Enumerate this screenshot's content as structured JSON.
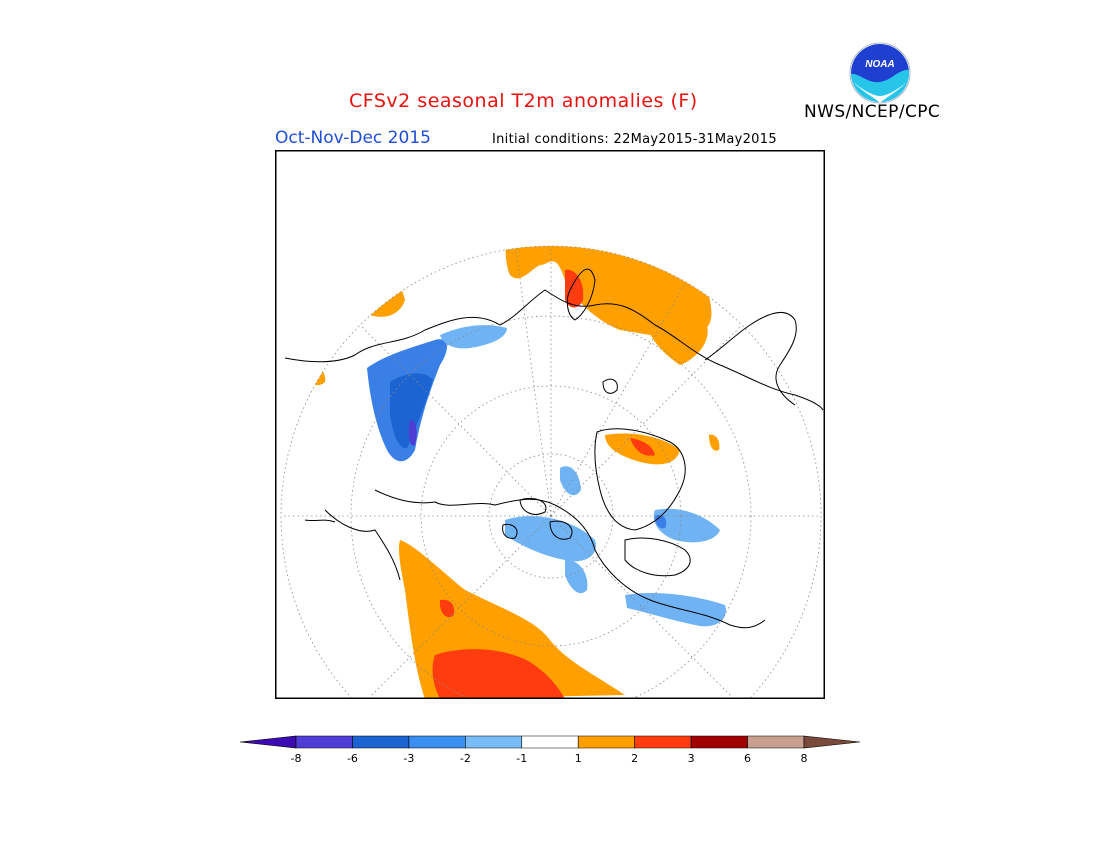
{
  "title": "CFSv2 seasonal T2m anomalies (F)",
  "period": "Oct-Nov-Dec 2015",
  "initial_conditions": "Initial conditions: 22May2015-31May2015",
  "agency": "NWS/NCEP/CPC",
  "logo": {
    "text": "NOAA",
    "icon": "noaa-logo-icon",
    "colors": {
      "sky": "#1f3fd1",
      "wave": "#27c6e8"
    }
  },
  "map": {
    "projection": "north polar stereographic",
    "anomaly_regions": [
      {
        "region": "Siberia / East Asia",
        "category": "1 to 2",
        "color": "#ffa000"
      },
      {
        "region": "Central Siberia coast",
        "category": "2 to 3",
        "color": "#ff3c10"
      },
      {
        "region": "Northwest Russia / Scandinavia",
        "category": "1 to 2",
        "color": "#ffa000"
      },
      {
        "region": "Alaska",
        "category": "1 to 2",
        "color": "#ffa000"
      },
      {
        "region": "Northern Greenland coast",
        "category": "1 to 2",
        "color": "#ffa000"
      },
      {
        "region": "Western North America / Pacific Northwest",
        "category": "1 to 2",
        "color": "#ffa000"
      },
      {
        "region": "Western United States",
        "category": "2 to 3",
        "color": "#ff3c10"
      },
      {
        "region": "Kazakhstan / Western Siberia",
        "category": "-3 to -1",
        "color": "#3a7fe6"
      },
      {
        "region": "Canadian Arctic Archipelago",
        "category": "-2 to -1",
        "color": "#6fb3f5"
      },
      {
        "region": "Hudson Bay",
        "category": "-2 to -1",
        "color": "#6fb3f5"
      },
      {
        "region": "Eastern Canada",
        "category": "-2 to -1",
        "color": "#6fb3f5"
      }
    ]
  },
  "legend": {
    "labels": [
      "-8",
      "-6",
      "-3",
      "-2",
      "-1",
      "1",
      "2",
      "3",
      "6",
      "8"
    ],
    "colors": [
      "#3d0bb4",
      "#4f3ed6",
      "#1b64d2",
      "#3a8ff0",
      "#78bcf6",
      "#ffffff",
      "#ffa000",
      "#ff3c10",
      "#a00000",
      "#c9a08f",
      "#7a4a3a"
    ]
  }
}
